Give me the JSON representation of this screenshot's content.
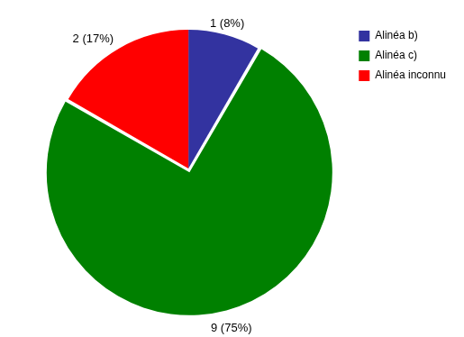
{
  "chart_data": {
    "type": "pie",
    "categories": [
      "Alinéa b)",
      "Alinéa c)",
      "Alinéa inconnu"
    ],
    "values": [
      1,
      9,
      2
    ],
    "value_labels": [
      "1 (8%)",
      "9 (75%)",
      "2 (17%)"
    ],
    "colors": [
      "#3333a0",
      "#008000",
      "#ff0000"
    ],
    "legend": "right",
    "data_labels": true
  }
}
